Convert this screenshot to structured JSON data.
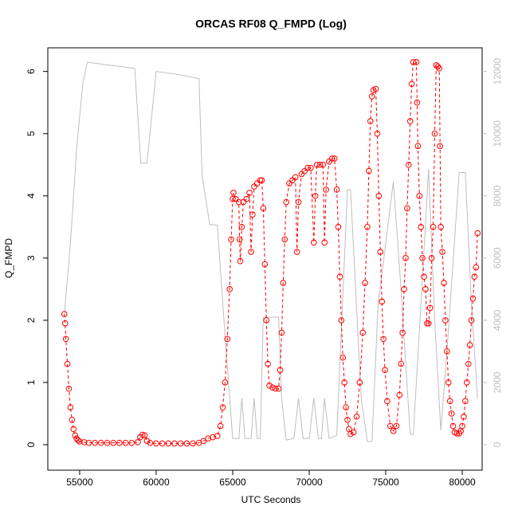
{
  "chart_data": {
    "type": "scatter",
    "title": "ORCAS RF08 Q_FMPD (Log)",
    "xlabel": "UTC Seconds",
    "ylabel": "Q_FMPD",
    "xlim": [
      52920,
      81300
    ],
    "xticks": [
      55000,
      60000,
      65000,
      70000,
      75000,
      80000
    ],
    "ylim": [
      -0.41,
      6.38
    ],
    "yticks": [
      0,
      1,
      2,
      3,
      4,
      5,
      6
    ],
    "y2lim": [
      -820,
      12760
    ],
    "y2ticks": [
      0,
      2000,
      4000,
      6000,
      8000,
      10000,
      12000
    ],
    "series": [
      {
        "type": "scatter",
        "color": "#ff0000",
        "x": [
          54000,
          54050,
          54100,
          54200,
          54300,
          54400,
          54500,
          54600,
          54700,
          54800,
          54900,
          55000,
          55300,
          55600,
          56000,
          56400,
          56800,
          57200,
          57600,
          58000,
          58400,
          58800,
          58950,
          59100,
          59250,
          59400,
          59600,
          60000,
          60400,
          60800,
          61200,
          61600,
          62000,
          62400,
          62800,
          63100,
          63400,
          63700,
          64000,
          64200,
          64350,
          64500,
          64650,
          64800,
          64900,
          65000,
          65050,
          65200,
          65400,
          65450,
          65500,
          65600,
          65700,
          65900,
          66100,
          66200,
          66300,
          66400,
          66600,
          66800,
          66900,
          67000,
          67100,
          67200,
          67300,
          67400,
          67600,
          67800,
          68000,
          68100,
          68200,
          68300,
          68400,
          68500,
          68700,
          68900,
          69100,
          69200,
          69300,
          69500,
          69700,
          69900,
          70100,
          70300,
          70400,
          70500,
          70700,
          70900,
          71000,
          71100,
          71300,
          71500,
          71650,
          71800,
          71900,
          72000,
          72100,
          72200,
          72300,
          72400,
          72500,
          72600,
          72700,
          72900,
          73100,
          73300,
          73500,
          73650,
          73800,
          73900,
          74000,
          74100,
          74200,
          74350,
          74450,
          74550,
          74650,
          74750,
          74850,
          74950,
          75100,
          75300,
          75500,
          75700,
          75900,
          76000,
          76100,
          76200,
          76300,
          76400,
          76500,
          76600,
          76700,
          76800,
          77000,
          77050,
          77100,
          77200,
          77300,
          77400,
          77500,
          77600,
          77700,
          77800,
          77900,
          78000,
          78100,
          78200,
          78300,
          78400,
          78500,
          78550,
          78600,
          78700,
          78800,
          78900,
          79000,
          79100,
          79200,
          79300,
          79400,
          79500,
          79650,
          79800,
          79900,
          80000,
          80100,
          80200,
          80300,
          80400,
          80500,
          80600,
          80700,
          80800,
          80900,
          81000
        ],
        "values": [
          2.1,
          1.95,
          1.7,
          1.3,
          0.9,
          0.6,
          0.4,
          0.25,
          0.15,
          0.1,
          0.07,
          0.05,
          0.04,
          0.03,
          0.03,
          0.03,
          0.03,
          0.03,
          0.03,
          0.03,
          0.03,
          0.04,
          0.12,
          0.16,
          0.15,
          0.06,
          0.03,
          0.02,
          0.02,
          0.02,
          0.02,
          0.02,
          0.02,
          0.02,
          0.03,
          0.06,
          0.1,
          0.12,
          0.14,
          0.3,
          0.6,
          1.0,
          1.7,
          2.5,
          3.3,
          3.95,
          4.05,
          3.95,
          3.9,
          3.3,
          2.95,
          3.5,
          3.9,
          3.95,
          4.05,
          3.1,
          3.7,
          4.15,
          4.2,
          4.25,
          4.25,
          3.8,
          2.9,
          2.0,
          1.3,
          0.95,
          0.92,
          0.9,
          0.9,
          1.2,
          1.8,
          2.6,
          3.3,
          3.9,
          4.2,
          4.25,
          4.3,
          3.1,
          3.9,
          4.35,
          4.4,
          4.45,
          4.45,
          3.25,
          4.0,
          4.5,
          4.5,
          4.5,
          3.25,
          4.1,
          4.55,
          4.6,
          4.6,
          4.1,
          3.5,
          2.7,
          2.0,
          1.4,
          1.0,
          0.6,
          0.4,
          0.25,
          0.17,
          0.2,
          0.45,
          1.0,
          1.8,
          2.6,
          3.5,
          4.4,
          5.2,
          5.6,
          5.7,
          5.72,
          5.0,
          4.0,
          3.1,
          2.3,
          1.7,
          1.2,
          0.7,
          0.3,
          0.22,
          0.3,
          0.8,
          1.3,
          1.8,
          2.5,
          3.0,
          3.8,
          4.5,
          5.2,
          5.8,
          6.15,
          6.15,
          5.5,
          4.8,
          4.0,
          3.5,
          3.0,
          2.7,
          2.5,
          1.95,
          1.95,
          2.2,
          3.0,
          3.5,
          5.0,
          6.1,
          6.08,
          6.05,
          4.8,
          3.5,
          3.1,
          2.6,
          2.0,
          1.5,
          1.0,
          0.7,
          0.5,
          0.3,
          0.2,
          0.18,
          0.18,
          0.22,
          0.3,
          0.45,
          0.7,
          1.0,
          1.3,
          1.6,
          2.0,
          2.35,
          2.7,
          2.85,
          3.4
        ]
      },
      {
        "type": "line",
        "axis": "y2",
        "color": "#bebebe",
        "x": [
          54000,
          54400,
          54800,
          55200,
          55500,
          57000,
          58600,
          59000,
          59400,
          60000,
          61500,
          62800,
          63000,
          63500,
          64000,
          64500,
          65000,
          65400,
          65600,
          65800,
          66200,
          66400,
          66600,
          66800,
          67000,
          68000,
          68200,
          68500,
          69000,
          69300,
          69600,
          70000,
          70300,
          70600,
          70800,
          71000,
          71300,
          71800,
          72500,
          72700,
          73400,
          73800,
          74100,
          74500,
          75500,
          76000,
          76600,
          76800,
          77300,
          77800,
          78200,
          78600,
          79000,
          79800,
          80200,
          80600,
          81000
        ],
        "values": [
          4180,
          6500,
          9500,
          11600,
          12300,
          12200,
          12100,
          9050,
          9050,
          12000,
          11900,
          11770,
          8670,
          7080,
          7060,
          3500,
          200,
          200,
          1500,
          200,
          200,
          1500,
          200,
          200,
          4100,
          4100,
          1500,
          150,
          200,
          1500,
          200,
          200,
          1500,
          200,
          200,
          1500,
          200,
          300,
          8200,
          8200,
          1500,
          100,
          100,
          4500,
          8460,
          5000,
          330,
          330,
          4500,
          8870,
          4000,
          460,
          3000,
          8750,
          8750,
          4500,
          1500
        ]
      }
    ]
  }
}
